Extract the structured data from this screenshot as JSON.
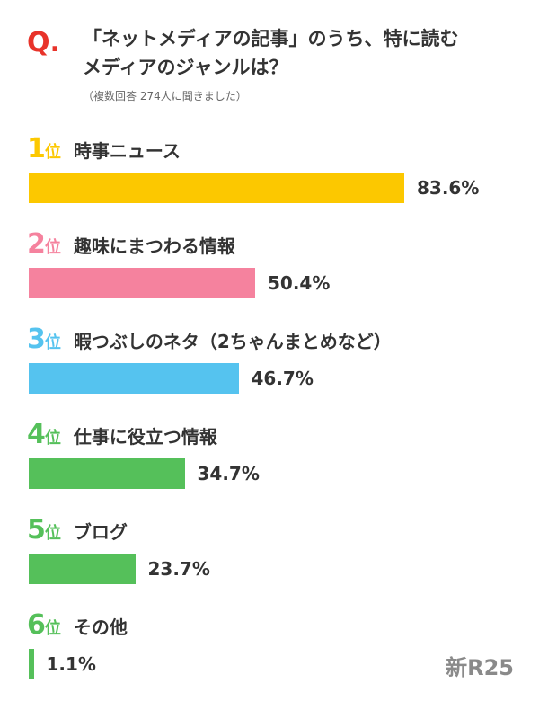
{
  "header": {
    "q_mark": "Q.",
    "title_line1": "「ネットメディアの記事」のうち、特に読む",
    "title_line2": "メディアのジャンルは？",
    "note": "（複数回答 274人に聞きました）"
  },
  "logo": "新R25",
  "colors": {
    "rank1": "#fcc800",
    "rank2": "#f5829e",
    "rank3": "#55c3ef",
    "rank4": "#55c05a"
  },
  "chart_data": {
    "type": "bar",
    "orientation": "horizontal",
    "categories": [
      "時事ニュース",
      "趣味にまつわる情報",
      "暇つぶしのネタ（2ちゃんまとめなど）",
      "仕事に役立つ情報",
      "ブログ",
      "その他"
    ],
    "values": [
      83.6,
      50.4,
      46.7,
      34.7,
      23.7,
      1.1
    ],
    "value_labels": [
      "83.6%",
      "50.4%",
      "46.7%",
      "34.7%",
      "23.7%",
      "1.1%"
    ],
    "rank_numbers": [
      "1",
      "2",
      "3",
      "4",
      "5",
      "6"
    ],
    "rank_suffix": "位",
    "bar_colors": [
      "#fcc800",
      "#f5829e",
      "#55c3ef",
      "#55c05a",
      "#55c05a",
      "#55c05a"
    ],
    "xlim": [
      0,
      100
    ],
    "grid": false,
    "legend": "none"
  }
}
